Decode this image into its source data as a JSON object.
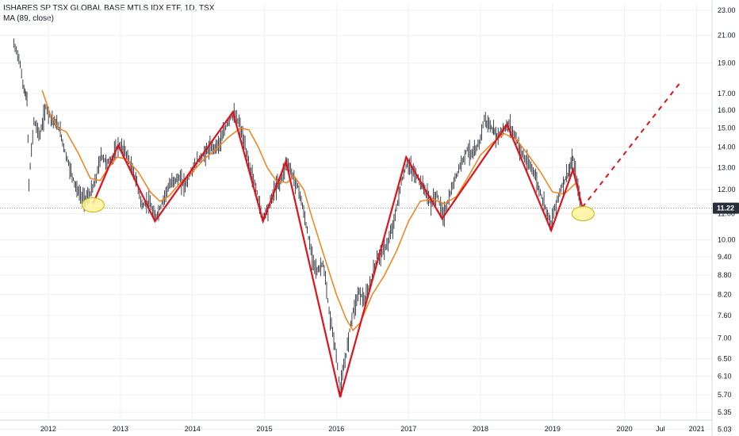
{
  "header": {
    "title": "ISHARES SP TSX GLOBAL BASE MTLS IDX ETF, 1D, TSX",
    "indicator": "MA (89, close)"
  },
  "colors": {
    "ma": "#f57f17",
    "zigzag": "#e0121b",
    "candles": "#2a2e39",
    "price_label_bg": "#2a2e39",
    "ellipse_fill": "#fff59d",
    "ellipse_stroke": "#c8b400"
  },
  "chart_data": {
    "type": "line",
    "y_scale": "log",
    "ylim": [
      5.2,
      23.6
    ],
    "xlim": [
      "2011-05-01",
      "2021-03-20"
    ],
    "grid": true,
    "y_ticks": [
      {
        "v": 23.0,
        "label": "23.00"
      },
      {
        "v": 21.0,
        "label": "21.00"
      },
      {
        "v": 19.0,
        "label": "19.00"
      },
      {
        "v": 17.0,
        "label": "17.00"
      },
      {
        "v": 16.0,
        "label": "16.00"
      },
      {
        "v": 15.0,
        "label": "15.00"
      },
      {
        "v": 14.0,
        "label": "14.00"
      },
      {
        "v": 13.0,
        "label": "13.00"
      },
      {
        "v": 12.0,
        "label": "12.00"
      },
      {
        "v": 11.0,
        "label": "11.00"
      },
      {
        "v": 10.0,
        "label": "10.00"
      },
      {
        "v": 9.4,
        "label": "9.40"
      },
      {
        "v": 8.8,
        "label": "8.80"
      },
      {
        "v": 8.2,
        "label": "8.20"
      },
      {
        "v": 7.6,
        "label": "7.60"
      },
      {
        "v": 7.0,
        "label": "7.00"
      },
      {
        "v": 6.5,
        "label": "6.50"
      },
      {
        "v": 6.1,
        "label": "6.10"
      },
      {
        "v": 5.7,
        "label": "5.70"
      },
      {
        "v": 5.35,
        "label": "5.35"
      },
      {
        "v": 5.03,
        "label": "5.03"
      }
    ],
    "x_ticks": [
      {
        "date": "2012-01-01",
        "label": "2012"
      },
      {
        "date": "2013-01-01",
        "label": "2013"
      },
      {
        "date": "2014-01-01",
        "label": "2014"
      },
      {
        "date": "2015-01-01",
        "label": "2015"
      },
      {
        "date": "2016-01-01",
        "label": "2016"
      },
      {
        "date": "2017-01-01",
        "label": "2017"
      },
      {
        "date": "2018-01-01",
        "label": "2018"
      },
      {
        "date": "2019-01-01",
        "label": "2019"
      },
      {
        "date": "2020-01-01",
        "label": "2020"
      },
      {
        "date": "2020-07-01",
        "label": "Jul"
      },
      {
        "date": "2021-01-01",
        "label": "2021"
      }
    ],
    "current_price": {
      "value": 11.22,
      "label": "11.22"
    },
    "price_series": [
      [
        "2011-07-10",
        20.3
      ],
      [
        "2011-08-05",
        19.4
      ],
      [
        "2011-08-25",
        17.6
      ],
      [
        "2011-09-15",
        16.6
      ],
      [
        "2011-09-25",
        12.2
      ],
      [
        "2011-10-20",
        15.4
      ],
      [
        "2011-11-20",
        14.6
      ],
      [
        "2011-12-20",
        16.2
      ],
      [
        "2012-01-15",
        15.6
      ],
      [
        "2012-02-25",
        15.0
      ],
      [
        "2012-03-25",
        13.8
      ],
      [
        "2012-04-25",
        12.8
      ],
      [
        "2012-05-25",
        12.0
      ],
      [
        "2012-06-25",
        11.6
      ],
      [
        "2012-07-25",
        11.7
      ],
      [
        "2012-08-25",
        12.3
      ],
      [
        "2012-09-25",
        13.6
      ],
      [
        "2012-10-25",
        13.2
      ],
      [
        "2012-11-25",
        13.5
      ],
      [
        "2012-12-20",
        14.1
      ],
      [
        "2013-01-25",
        13.8
      ],
      [
        "2013-02-25",
        13.0
      ],
      [
        "2013-03-25",
        12.3
      ],
      [
        "2013-04-20",
        11.3
      ],
      [
        "2013-05-25",
        11.5
      ],
      [
        "2013-06-25",
        10.8
      ],
      [
        "2013-07-25",
        11.3
      ],
      [
        "2013-08-25",
        12.0
      ],
      [
        "2013-09-25",
        12.4
      ],
      [
        "2013-10-25",
        12.5
      ],
      [
        "2013-11-25",
        12.2
      ],
      [
        "2013-12-25",
        12.8
      ],
      [
        "2014-01-25",
        13.3
      ],
      [
        "2014-02-25",
        13.6
      ],
      [
        "2014-03-25",
        13.9
      ],
      [
        "2014-04-25",
        14.0
      ],
      [
        "2014-05-25",
        14.3
      ],
      [
        "2014-06-25",
        15.2
      ],
      [
        "2014-07-25",
        15.8
      ],
      [
        "2014-08-25",
        15.3
      ],
      [
        "2014-09-25",
        14.0
      ],
      [
        "2014-10-25",
        12.8
      ],
      [
        "2014-11-25",
        11.9
      ],
      [
        "2014-12-20",
        10.8
      ],
      [
        "2015-01-25",
        11.3
      ],
      [
        "2015-02-25",
        12.1
      ],
      [
        "2015-03-25",
        12.4
      ],
      [
        "2015-04-25",
        13.3
      ],
      [
        "2015-05-25",
        12.6
      ],
      [
        "2015-06-25",
        12.0
      ],
      [
        "2015-07-25",
        10.8
      ],
      [
        "2015-08-25",
        9.6
      ],
      [
        "2015-09-25",
        8.9
      ],
      [
        "2015-10-25",
        9.2
      ],
      [
        "2015-11-25",
        7.7
      ],
      [
        "2015-12-25",
        6.8
      ],
      [
        "2016-01-20",
        5.8
      ],
      [
        "2016-02-20",
        6.6
      ],
      [
        "2016-03-20",
        7.6
      ],
      [
        "2016-04-25",
        8.3
      ],
      [
        "2016-05-25",
        8.0
      ],
      [
        "2016-06-25",
        8.6
      ],
      [
        "2016-07-25",
        9.4
      ],
      [
        "2016-08-25",
        9.6
      ],
      [
        "2016-09-25",
        10.0
      ],
      [
        "2016-10-25",
        10.9
      ],
      [
        "2016-11-25",
        12.3
      ],
      [
        "2016-12-25",
        13.2
      ],
      [
        "2017-01-25",
        12.8
      ],
      [
        "2017-02-25",
        12.4
      ],
      [
        "2017-03-25",
        12.0
      ],
      [
        "2017-04-25",
        11.4
      ],
      [
        "2017-05-25",
        11.8
      ],
      [
        "2017-06-25",
        10.9
      ],
      [
        "2017-07-25",
        11.6
      ],
      [
        "2017-08-25",
        12.5
      ],
      [
        "2017-09-25",
        13.2
      ],
      [
        "2017-10-25",
        13.9
      ],
      [
        "2017-11-25",
        13.6
      ],
      [
        "2017-12-25",
        14.2
      ],
      [
        "2018-01-20",
        15.5
      ],
      [
        "2018-02-25",
        15.0
      ],
      [
        "2018-03-25",
        14.6
      ],
      [
        "2018-04-25",
        14.9
      ],
      [
        "2018-05-25",
        15.2
      ],
      [
        "2018-06-25",
        14.6
      ],
      [
        "2018-07-25",
        13.8
      ],
      [
        "2018-08-25",
        13.2
      ],
      [
        "2018-09-25",
        12.9
      ],
      [
        "2018-10-25",
        12.0
      ],
      [
        "2018-11-25",
        11.3
      ],
      [
        "2018-12-25",
        10.6
      ],
      [
        "2019-01-25",
        11.6
      ],
      [
        "2019-02-25",
        12.3
      ],
      [
        "2019-03-25",
        12.8
      ],
      [
        "2019-04-15",
        13.4
      ],
      [
        "2019-05-10",
        12.1
      ],
      [
        "2019-05-25",
        11.3
      ]
    ],
    "ma_series": [
      [
        "2011-12-01",
        17.2
      ],
      [
        "2012-01-10",
        15.8
      ],
      [
        "2012-02-20",
        15.0
      ],
      [
        "2012-04-01",
        14.8
      ],
      [
        "2012-06-01",
        13.7
      ],
      [
        "2012-08-01",
        12.5
      ],
      [
        "2012-09-20",
        12.4
      ],
      [
        "2012-11-01",
        13.0
      ],
      [
        "2012-12-15",
        13.5
      ],
      [
        "2013-02-01",
        13.4
      ],
      [
        "2013-04-01",
        12.8
      ],
      [
        "2013-06-01",
        11.9
      ],
      [
        "2013-07-20",
        11.5
      ],
      [
        "2013-09-01",
        11.7
      ],
      [
        "2013-11-01",
        12.3
      ],
      [
        "2014-01-01",
        12.8
      ],
      [
        "2014-03-01",
        13.4
      ],
      [
        "2014-05-01",
        13.9
      ],
      [
        "2014-07-01",
        14.5
      ],
      [
        "2014-09-01",
        15.0
      ],
      [
        "2014-10-15",
        14.9
      ],
      [
        "2014-12-01",
        14.0
      ],
      [
        "2015-01-15",
        13.0
      ],
      [
        "2015-03-01",
        12.4
      ],
      [
        "2015-04-25",
        12.3
      ],
      [
        "2015-06-01",
        12.6
      ],
      [
        "2015-07-20",
        12.0
      ],
      [
        "2015-09-01",
        10.8
      ],
      [
        "2015-11-01",
        9.4
      ],
      [
        "2016-01-01",
        8.2
      ],
      [
        "2016-02-20",
        7.5
      ],
      [
        "2016-03-25",
        7.2
      ],
      [
        "2016-05-01",
        7.4
      ],
      [
        "2016-07-01",
        8.2
      ],
      [
        "2016-09-01",
        8.8
      ],
      [
        "2016-11-01",
        9.6
      ],
      [
        "2017-01-01",
        10.7
      ],
      [
        "2017-03-01",
        11.5
      ],
      [
        "2017-05-01",
        11.6
      ],
      [
        "2017-07-01",
        11.4
      ],
      [
        "2017-09-01",
        11.7
      ],
      [
        "2017-11-01",
        12.6
      ],
      [
        "2018-01-01",
        13.6
      ],
      [
        "2018-03-01",
        14.2
      ],
      [
        "2018-05-01",
        14.7
      ],
      [
        "2018-07-01",
        14.4
      ],
      [
        "2018-09-01",
        13.6
      ],
      [
        "2018-11-01",
        12.8
      ],
      [
        "2019-01-01",
        11.9
      ],
      [
        "2019-03-01",
        11.8
      ],
      [
        "2019-05-01",
        12.3
      ]
    ],
    "zigzag": [
      [
        "2012-08-15",
        11.4
      ],
      [
        "2012-12-20",
        14.1
      ],
      [
        "2013-06-25",
        10.7
      ],
      [
        "2014-07-25",
        15.9
      ],
      [
        "2014-12-25",
        10.7
      ],
      [
        "2015-04-20",
        13.3
      ],
      [
        "2016-01-20",
        5.65
      ],
      [
        "2016-12-20",
        13.5
      ],
      [
        "2017-06-20",
        10.8
      ],
      [
        "2018-05-15",
        15.2
      ],
      [
        "2018-12-25",
        10.35
      ],
      [
        "2019-04-15",
        12.9
      ],
      [
        "2019-06-01",
        11.25
      ]
    ],
    "projection": [
      [
        "2019-06-01",
        11.25
      ],
      [
        "2020-10-10",
        17.7
      ]
    ],
    "annotations": [
      {
        "shape": "ellipse",
        "date": "2012-08-15",
        "value": 11.35
      },
      {
        "shape": "ellipse",
        "date": "2019-06-05",
        "value": 11.0
      }
    ]
  }
}
